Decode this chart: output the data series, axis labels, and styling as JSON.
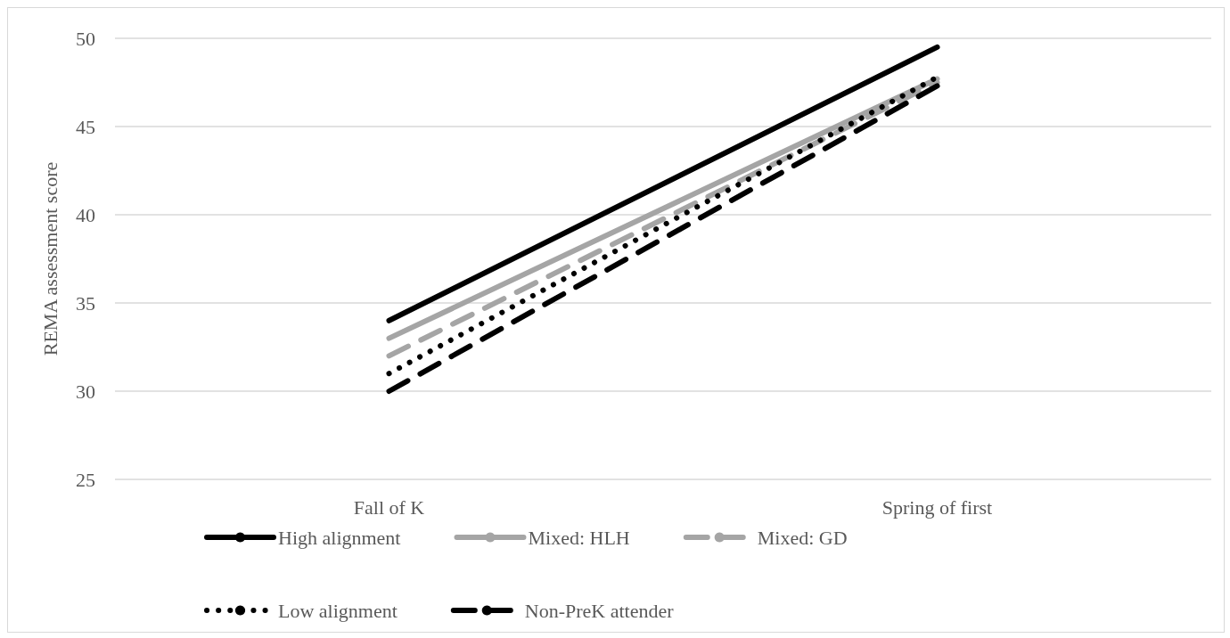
{
  "chart_data": {
    "type": "line",
    "ylabel": "REMA assessment score",
    "categories": [
      "Fall of K",
      "Spring of first"
    ],
    "series": [
      {
        "name": "High alignment",
        "color": "#000000",
        "line_style": "solid",
        "values": [
          34,
          49.5
        ]
      },
      {
        "name": "Mixed: HLH",
        "color": "#a5a5a5",
        "line_style": "solid",
        "values": [
          33,
          47.7
        ]
      },
      {
        "name": "Mixed: GD",
        "color": "#a5a5a5",
        "line_style": "dashed",
        "values": [
          32,
          47.5
        ]
      },
      {
        "name": "Low alignment",
        "color": "#000000",
        "line_style": "dotted",
        "values": [
          31,
          47.8
        ]
      },
      {
        "name": "Non-PreK attender",
        "color": "#000000",
        "line_style": "dashed",
        "values": [
          30,
          47.3
        ]
      }
    ],
    "ylim": [
      25,
      50
    ],
    "yticks": [
      25,
      30,
      35,
      40,
      45,
      50
    ],
    "grid": "y",
    "legend": "bottom",
    "marker": "none"
  }
}
